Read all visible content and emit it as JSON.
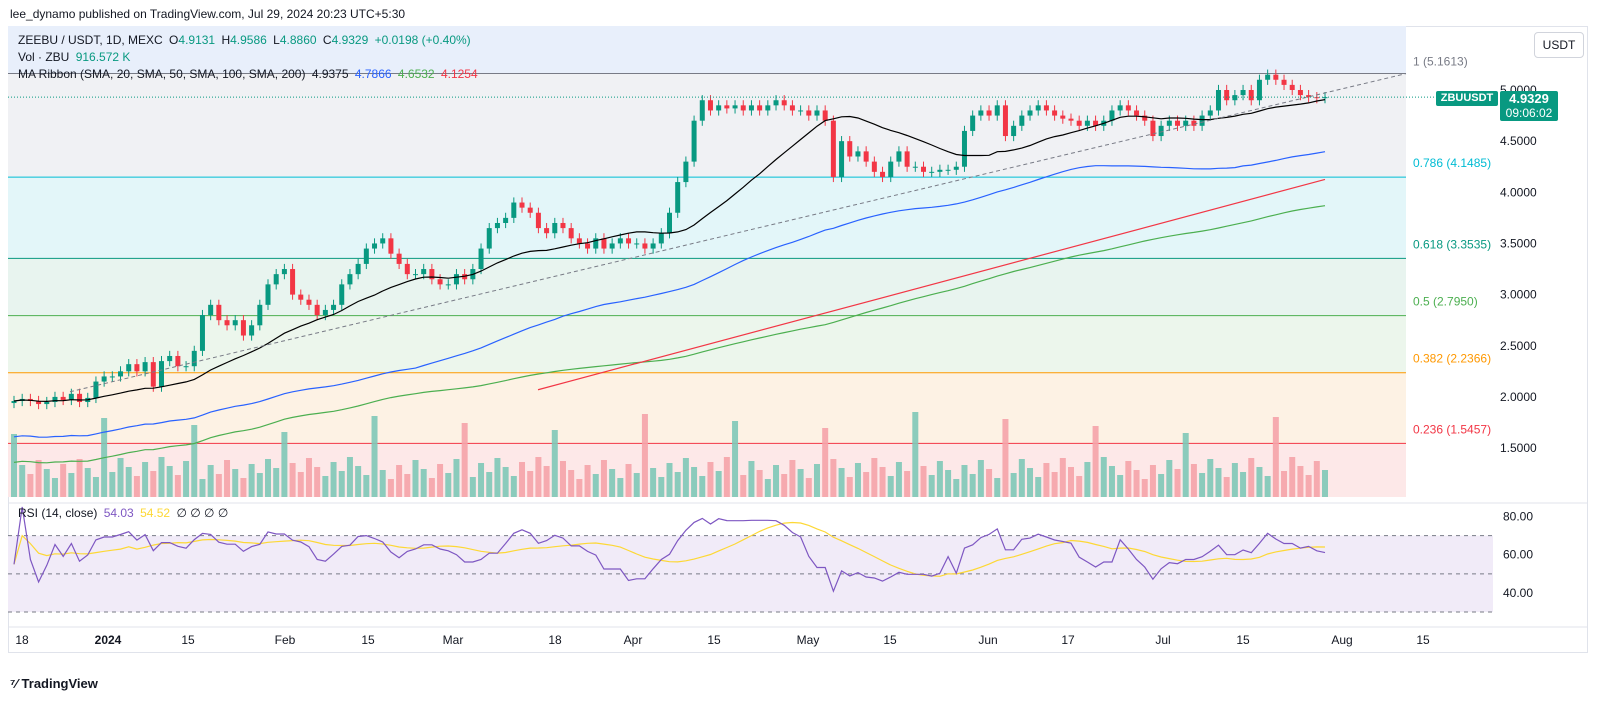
{
  "header": {
    "publisher": "lee_dynamo published on TradingView.com, Jul 29, 2024 20:23 UTC+5:30"
  },
  "legend": {
    "symbol": "ZEEBU / USDT, 1D, MEXC",
    "open_label": "O",
    "open": "4.9131",
    "high_label": "H",
    "high": "4.9586",
    "low_label": "L",
    "low": "4.8860",
    "close_label": "C",
    "close": "4.9329",
    "change": "+0.0198 (+0.40%)",
    "vol_label": "Vol · ZBU",
    "vol": "916.572 K",
    "ma_label": "MA Ribbon (SMA, 20, SMA, 50, SMA, 100, SMA, 200)",
    "ma20": "4.9375",
    "ma50": "4.7866",
    "ma100": "4.6532",
    "ma200": "4.1254",
    "rsi_label": "RSI (14, close)",
    "rsi_val": "54.03",
    "rsi_ma": "54.52",
    "rsi_extra": "∅ ∅ ∅ ∅"
  },
  "currency_button": "USDT",
  "price_tag": {
    "symbol": "ZBUUSDT",
    "price": "4.9329",
    "countdown": "09:06:02"
  },
  "footer": {
    "brand": "TradingView",
    "logo_icon": "tradingview-logo-icon"
  },
  "colors": {
    "up": "#089981",
    "down": "#f23645",
    "ma20": "#000000",
    "ma50": "#2962ff",
    "ma100": "#4caf50",
    "ma200": "#f23645",
    "rsi": "#7e57c2",
    "rsi_ma": "#fdd835"
  },
  "chart_data": {
    "type": "candlestick",
    "price_axis": {
      "ticks": [
        5.0,
        4.5,
        4.0,
        3.5,
        3.0,
        2.5,
        2.0,
        1.5
      ],
      "tick_labels": [
        "5.0000",
        "4.5000",
        "4.0000",
        "3.5000",
        "3.0000",
        "2.5000",
        "2.0000",
        "1.5000"
      ]
    },
    "time_axis": {
      "labels": [
        "18",
        "2024",
        "15",
        "Feb",
        "15",
        "Mar",
        "18",
        "Apr",
        "15",
        "May",
        "15",
        "Jun",
        "17",
        "Jul",
        "15",
        "Aug",
        "15"
      ]
    },
    "fib_levels": [
      {
        "ratio": "1",
        "value": 5.1613,
        "label": "1 (5.1613)",
        "color": "#787b86"
      },
      {
        "ratio": "0.786",
        "value": 4.1485,
        "label": "0.786 (4.1485)",
        "color": "#00bcd4"
      },
      {
        "ratio": "0.618",
        "value": 3.3535,
        "label": "0.618 (3.3535)",
        "color": "#089981"
      },
      {
        "ratio": "0.5",
        "value": 2.795,
        "label": "0.5 (2.7950)",
        "color": "#4caf50"
      },
      {
        "ratio": "0.382",
        "value": 2.2366,
        "label": "0.382 (2.2366)",
        "color": "#ff9800"
      },
      {
        "ratio": "0.236",
        "value": 1.5457,
        "label": "0.236 (1.5457)",
        "color": "#f23645"
      }
    ],
    "close_series": [
      1.96,
      1.98,
      1.96,
      1.93,
      1.95,
      2.0,
      1.97,
      2.03,
      1.95,
      1.99,
      2.15,
      2.2,
      2.2,
      2.25,
      2.32,
      2.25,
      2.34,
      2.1,
      2.35,
      2.4,
      2.3,
      2.3,
      2.45,
      2.8,
      2.9,
      2.75,
      2.7,
      2.75,
      2.6,
      2.7,
      2.9,
      3.1,
      3.2,
      3.25,
      3.0,
      2.95,
      2.9,
      2.8,
      2.85,
      2.9,
      3.1,
      3.2,
      3.3,
      3.45,
      3.5,
      3.55,
      3.4,
      3.3,
      3.2,
      3.2,
      3.25,
      3.15,
      3.1,
      3.1,
      3.2,
      3.15,
      3.25,
      3.45,
      3.65,
      3.7,
      3.75,
      3.9,
      3.85,
      3.8,
      3.65,
      3.6,
      3.7,
      3.65,
      3.55,
      3.5,
      3.45,
      3.55,
      3.45,
      3.5,
      3.55,
      3.5,
      3.5,
      3.45,
      3.5,
      3.6,
      3.8,
      4.1,
      4.3,
      4.7,
      4.9,
      4.8,
      4.85,
      4.82,
      4.85,
      4.8,
      4.85,
      4.8,
      4.85,
      4.9,
      4.85,
      4.8,
      4.8,
      4.75,
      4.8,
      4.7,
      4.15,
      4.5,
      4.35,
      4.4,
      4.3,
      4.2,
      4.15,
      4.3,
      4.4,
      4.25,
      4.25,
      4.2,
      4.2,
      4.22,
      4.22,
      4.25,
      4.6,
      4.75,
      4.8,
      4.75,
      4.85,
      4.55,
      4.65,
      4.75,
      4.8,
      4.85,
      4.8,
      4.75,
      4.72,
      4.7,
      4.65,
      4.7,
      4.65,
      4.7,
      4.8,
      4.85,
      4.8,
      4.75,
      4.7,
      4.55,
      4.65,
      4.7,
      4.65,
      4.7,
      4.65,
      4.75,
      4.8,
      5.0,
      4.9,
      4.95,
      5.0,
      4.9,
      5.1,
      5.15,
      5.1,
      5.05,
      5.0,
      4.95,
      4.93,
      4.92,
      4.93
    ],
    "ma20_end": 4.9375,
    "ma50_end": 4.7866,
    "ma100_end": 4.6532,
    "ma200_end": 4.1254,
    "rsi": {
      "upper": 70,
      "middle": 50,
      "lower": 30,
      "ticks": [
        80,
        60,
        40
      ],
      "tick_labels": [
        "80.00",
        "60.00",
        "40.00"
      ],
      "last": 54.03,
      "ma_last": 54.52
    }
  }
}
